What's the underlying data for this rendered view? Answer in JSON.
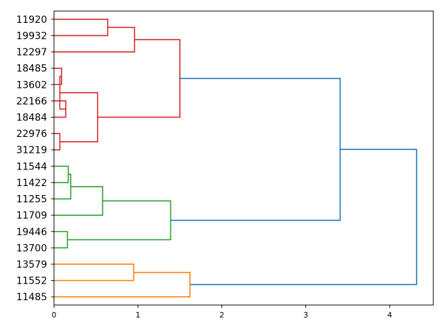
{
  "chart_data": {
    "type": "dendrogram",
    "orientation": "left",
    "leaves": [
      "11920",
      "19932",
      "12297",
      "18485",
      "13602",
      "22166",
      "18484",
      "22976",
      "31219",
      "11544",
      "11422",
      "11255",
      "11709",
      "19446",
      "13700",
      "13579",
      "11552",
      "11485"
    ],
    "xlim": [
      0,
      4.52
    ],
    "xticks": [
      0,
      1,
      2,
      3,
      4
    ],
    "xtick_labels": [
      "0",
      "1",
      "2",
      "3",
      "4"
    ],
    "colors": {
      "red": "#d62728",
      "green": "#2ca02c",
      "orange": "#ff7f0e",
      "blue": "#1f77b4"
    },
    "merges": [
      {
        "a": "L0",
        "b": "L1",
        "h": 0.64,
        "color": "red"
      },
      {
        "a": "M0",
        "b": "L2",
        "h": 0.96,
        "color": "red"
      },
      {
        "a": "L3",
        "b": "L4",
        "h": 0.09,
        "color": "red"
      },
      {
        "a": "M2",
        "b": "L5",
        "h": 0.14,
        "color": "red"
      },
      {
        "a": "L5",
        "b": "L6",
        "h": 0.07,
        "color": "red"
      },
      {
        "a": "L7",
        "b": "L8",
        "h": 0.07,
        "color": "red"
      },
      {
        "a": "M2x",
        "b": "M5",
        "h": 0.52,
        "color": "red"
      },
      {
        "a": "M1",
        "b": "M6",
        "h": 1.5,
        "color": "red"
      },
      {
        "a": "L9",
        "b": "L10",
        "h": 0.17,
        "color": "green"
      },
      {
        "a": "M8",
        "b": "L11",
        "h": 0.2,
        "color": "green"
      },
      {
        "a": "M9",
        "b": "L12",
        "h": 0.58,
        "color": "green"
      },
      {
        "a": "L13",
        "b": "L14",
        "h": 0.16,
        "color": "green"
      },
      {
        "a": "M10",
        "b": "M11",
        "h": 1.39,
        "color": "green"
      },
      {
        "a": "L15",
        "b": "L16",
        "h": 0.95,
        "color": "orange"
      },
      {
        "a": "M13",
        "b": "L17",
        "h": 1.62,
        "color": "orange"
      },
      {
        "a": "M7",
        "b": "M12",
        "h": 3.41,
        "color": "blue"
      },
      {
        "a": "M15",
        "b": "M14",
        "h": 4.32,
        "color": "blue"
      }
    ]
  }
}
